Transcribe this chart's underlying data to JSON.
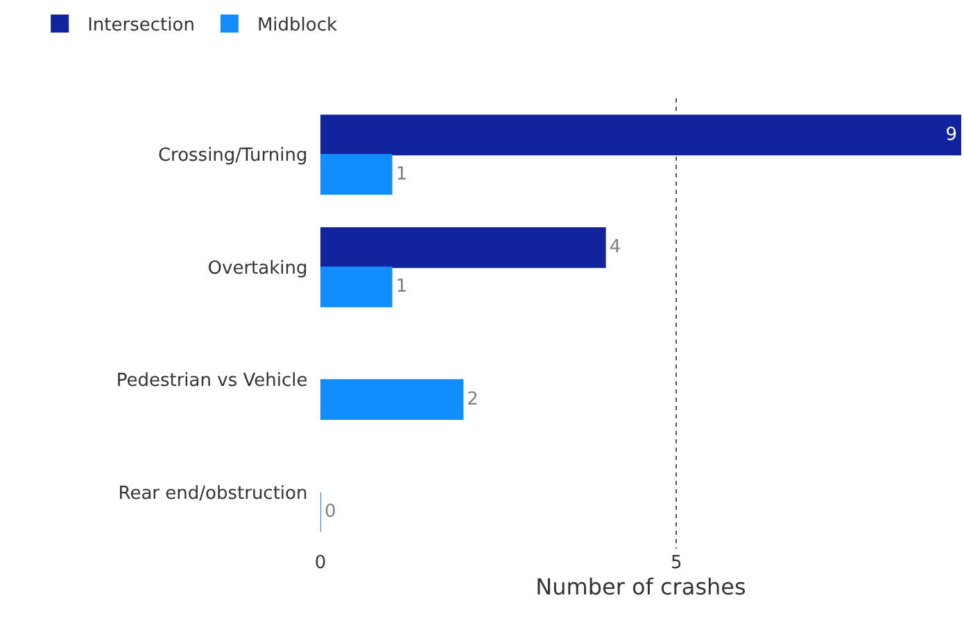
{
  "chart_data": {
    "type": "bar",
    "orientation": "horizontal",
    "categories": [
      "Crossing/Turning",
      "Overtaking",
      "Pedestrian vs Vehicle",
      "Rear end/obstruction"
    ],
    "series": [
      {
        "name": "Intersection",
        "color": "#12239e",
        "values": [
          9,
          4,
          null,
          null
        ],
        "value_labels": [
          "9",
          "4",
          null,
          null
        ]
      },
      {
        "name": "Midblock",
        "color": "#118dff",
        "values": [
          1,
          1,
          2,
          0
        ],
        "value_labels": [
          "1",
          "1",
          "2",
          "0"
        ]
      }
    ],
    "xlim": [
      0,
      9
    ],
    "xticks": [
      0,
      5
    ],
    "xlabel": "Number of crashes",
    "grid": "x",
    "legend": "top left"
  }
}
